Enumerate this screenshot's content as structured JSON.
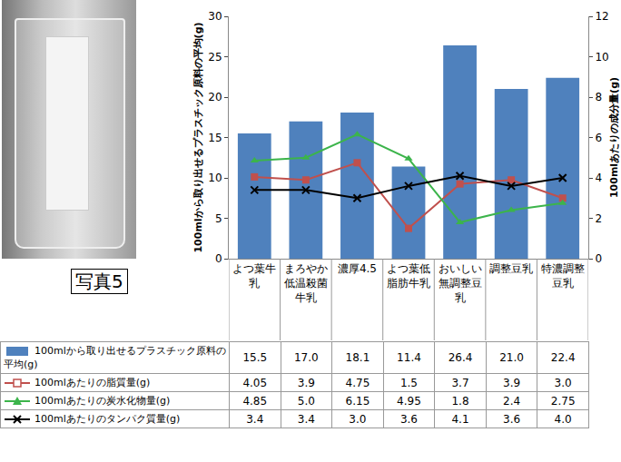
{
  "chart_data": {
    "type": "bar",
    "categories": [
      "よつ葉牛乳",
      "まろやか低温殺菌牛乳",
      "濃厚4.5",
      "よつ葉低脂肪牛乳",
      "おいしい無調整豆乳",
      "調整豆乳",
      "特濃調整豆乳"
    ],
    "ylabel": "100mlから取り出せるプラスチック原料の平均(g)",
    "y2label": "100mlあたりの成分量(g)",
    "ylim": [
      0,
      30
    ],
    "yticks": [
      0,
      5,
      10,
      15,
      20,
      25,
      30
    ],
    "y2lim": [
      0,
      12
    ],
    "y2ticks": [
      0,
      2,
      4,
      6,
      8,
      10,
      12
    ],
    "grid": false,
    "legend": "bottom",
    "series": [
      {
        "name": "100mlから取り出せるプラスチック原料の平均(g)",
        "type": "bar",
        "color": "#4f81bd",
        "values": [
          15.5,
          17.0,
          18.1,
          11.4,
          26.4,
          21.0,
          22.4
        ],
        "value_labels": [
          "15.5",
          "17.0",
          "18.1",
          "11.4",
          "26.4",
          "21.0",
          "22.4"
        ]
      },
      {
        "name": "100mlあたりの脂質量(g)",
        "type": "line",
        "axis": "y2",
        "color": "#c0504d",
        "marker": "square",
        "values": [
          4.05,
          3.9,
          4.75,
          1.5,
          3.7,
          3.9,
          3.0
        ],
        "value_labels": [
          "4.05",
          "3.9",
          "4.75",
          "1.5",
          "3.7",
          "3.9",
          "3.0"
        ]
      },
      {
        "name": "100mlあたりの炭水化物量(g)",
        "type": "line",
        "axis": "y2",
        "color": "#3cb44b",
        "marker": "triangle-up",
        "values": [
          4.85,
          5.0,
          6.15,
          4.95,
          1.8,
          2.4,
          2.75
        ],
        "value_labels": [
          "4.85",
          "5.0",
          "6.15",
          "4.95",
          "1.8",
          "2.4",
          "2.75"
        ]
      },
      {
        "name": "100mlあたりのタンパク質量(g)",
        "type": "line",
        "axis": "y2",
        "color": "#000000",
        "marker": "x",
        "values": [
          3.4,
          3.4,
          3.0,
          3.6,
          4.1,
          3.6,
          4.0
        ],
        "value_labels": [
          "3.4",
          "3.4",
          "3.0",
          "3.6",
          "4.1",
          "3.6",
          "4.0"
        ]
      }
    ]
  },
  "photo": {
    "caption": "写真5"
  }
}
